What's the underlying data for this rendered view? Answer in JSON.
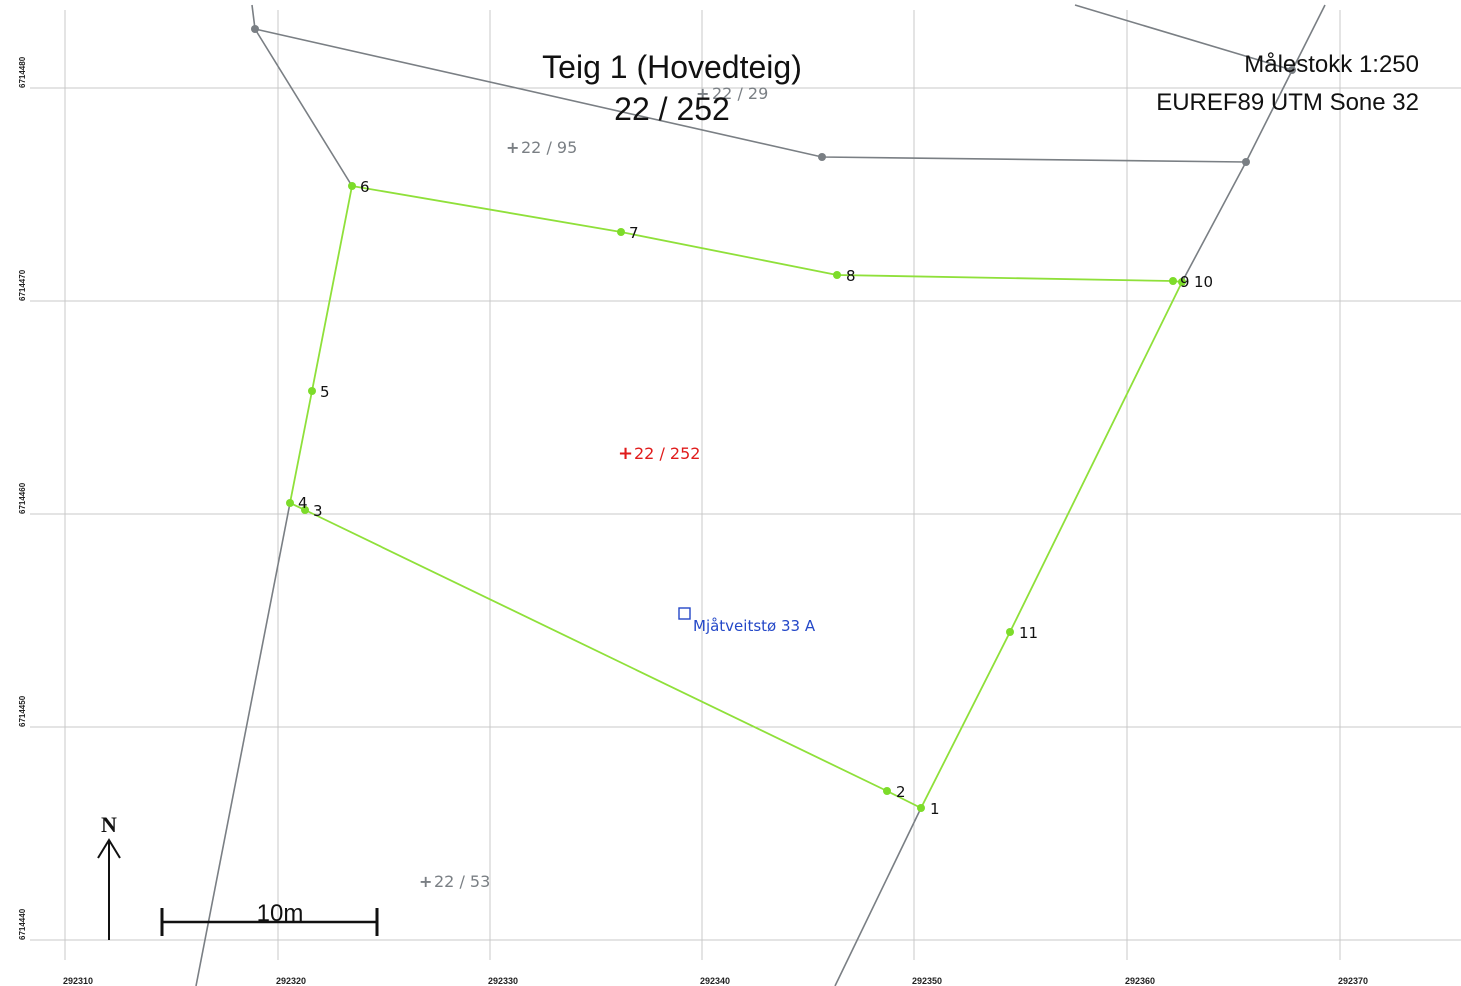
{
  "map": {
    "title": "Teig 1 (Hovedteig)",
    "parcel_id": "22 / 252",
    "scale_text": "Målestokk 1:250",
    "crs_text": "EUREF89 UTM Sone 32",
    "scale_bar_label": "10m",
    "north_label": "N",
    "address_label": "Mjåtveitstø 33 A",
    "main_parcel_label": "22 / 252",
    "neighbor_labels": [
      "22 / 29",
      "22 / 95",
      "22 / 53"
    ],
    "point_labels": [
      "1",
      "2",
      "3",
      "4",
      "5",
      "6",
      "7",
      "8",
      "9",
      "10",
      "11"
    ],
    "easting_ticks": [
      "292310",
      "292320",
      "292330",
      "292340",
      "292350",
      "292360",
      "292370"
    ],
    "northing_ticks": [
      "6714480",
      "6714470",
      "6714460",
      "6714450",
      "6714440"
    ],
    "colors": {
      "parcel_boundary": "#8fe03a",
      "neighbor_boundary": "#7a7f84",
      "main_label": "#e01b1b",
      "address": "#2448c8",
      "grid": "#c8c8c8"
    }
  }
}
